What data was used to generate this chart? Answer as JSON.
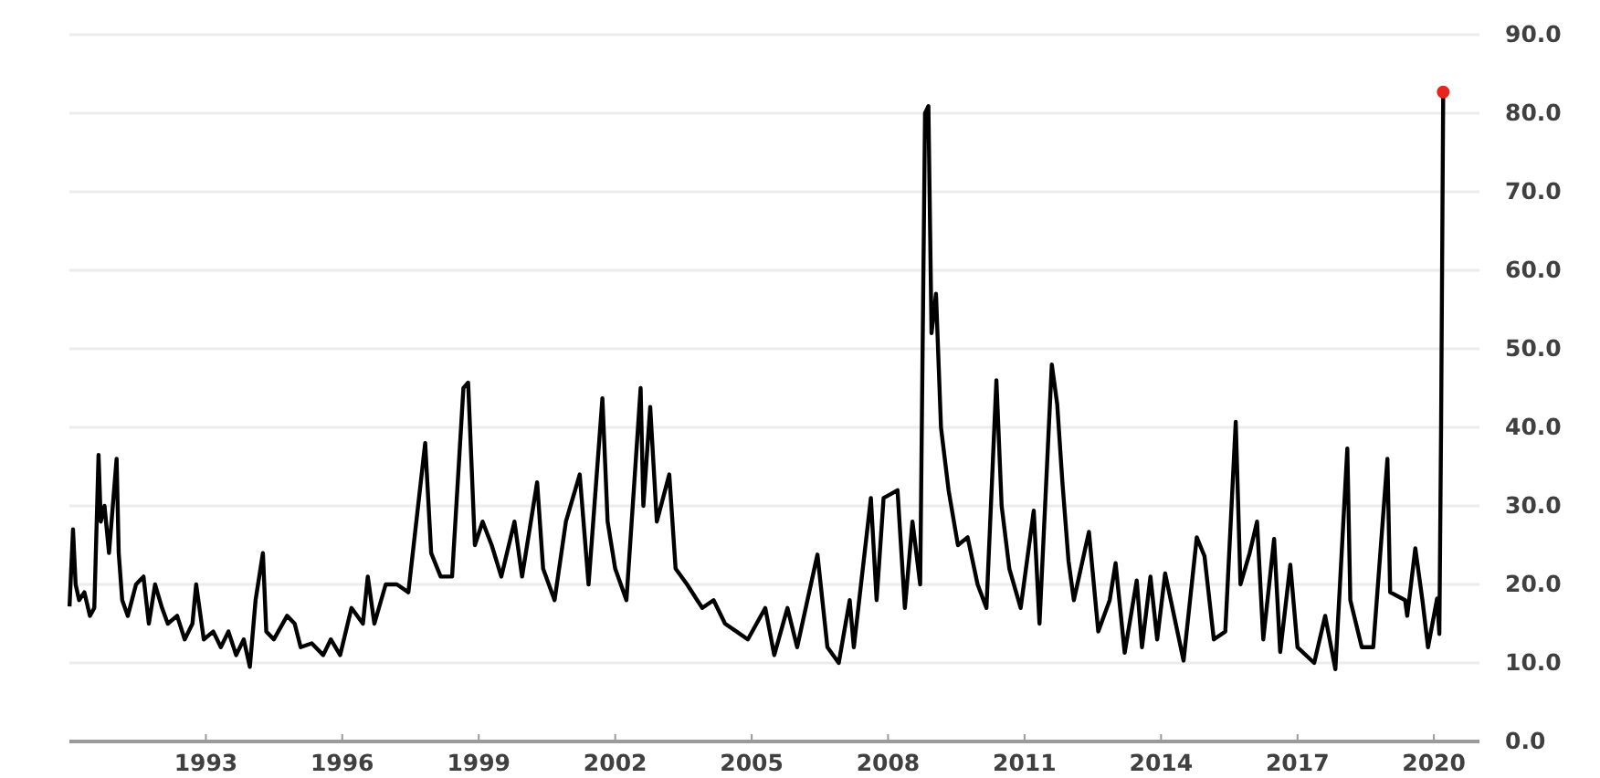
{
  "chart_data": {
    "type": "line",
    "xlim": [
      "1990-01-01",
      "2021-01-01"
    ],
    "xticks": [
      "1993",
      "1996",
      "1999",
      "2002",
      "2005",
      "2008",
      "2011",
      "2014",
      "2017",
      "2020"
    ],
    "ylim": [
      0,
      90
    ],
    "yticks": [
      {
        "value": 0,
        "label": "0.0"
      },
      {
        "value": 10,
        "label": "10.0"
      },
      {
        "value": 20,
        "label": "20.0"
      },
      {
        "value": 30,
        "label": "30.0"
      },
      {
        "value": 40,
        "label": "40.0"
      },
      {
        "value": 50,
        "label": "50.0"
      },
      {
        "value": 60,
        "label": "60.0"
      },
      {
        "value": 70,
        "label": "70.0"
      },
      {
        "value": 80,
        "label": "80.0"
      },
      {
        "value": 90,
        "label": "90.0"
      }
    ],
    "grid": "y",
    "line_style": "solid",
    "series": [
      {
        "color": "#000000",
        "x": [
          "1990-01-02",
          "1990-01-30",
          "1990-02-20",
          "1990-03-20",
          "1990-05-01",
          "1990-06-15",
          "1990-07-20",
          "1990-08-23",
          "1990-09-10",
          "1990-10-10",
          "1990-11-15",
          "1991-01-15",
          "1991-02-01",
          "1991-03-01",
          "1991-04-15",
          "1991-06-20",
          "1991-08-19",
          "1991-10-01",
          "1991-11-20",
          "1992-01-15",
          "1992-03-01",
          "1992-05-15",
          "1992-07-15",
          "1992-09-15",
          "1992-10-15",
          "1992-12-15",
          "1993-03-01",
          "1993-05-01",
          "1993-07-01",
          "1993-09-01",
          "1993-11-01",
          "1993-12-20",
          "1994-02-04",
          "1994-04-04",
          "1994-05-01",
          "1994-07-01",
          "1994-10-15",
          "1994-12-15",
          "1995-02-01",
          "1995-05-01",
          "1995-08-01",
          "1995-10-01",
          "1995-12-15",
          "1996-03-15",
          "1996-06-15",
          "1996-07-24",
          "1996-09-15",
          "1996-12-15",
          "1997-03-15",
          "1997-06-15",
          "1997-10-28",
          "1997-12-15",
          "1998-03-01",
          "1998-06-01",
          "1998-08-31",
          "1998-10-08",
          "1998-12-01",
          "1999-02-01",
          "1999-04-15",
          "1999-07-01",
          "1999-10-15",
          "1999-12-15",
          "2000-04-14",
          "2000-06-01",
          "2000-09-01",
          "2000-12-01",
          "2001-03-22",
          "2001-06-01",
          "2001-09-20",
          "2001-11-01",
          "2002-01-01",
          "2002-04-01",
          "2002-07-24",
          "2002-08-15",
          "2002-10-09",
          "2002-12-01",
          "2003-03-11",
          "2003-05-01",
          "2003-08-01",
          "2003-12-01",
          "2004-03-01",
          "2004-06-01",
          "2004-09-01",
          "2004-12-01",
          "2005-04-20",
          "2005-07-01",
          "2005-10-15",
          "2006-01-01",
          "2006-06-13",
          "2006-09-01",
          "2006-12-01",
          "2007-02-27",
          "2007-04-01",
          "2007-08-16",
          "2007-10-01",
          "2007-11-26",
          "2008-01-22",
          "2008-03-17",
          "2008-05-15",
          "2008-07-15",
          "2008-09-15",
          "2008-10-24",
          "2008-11-20",
          "2008-12-15",
          "2009-01-20",
          "2009-03-01",
          "2009-05-01",
          "2009-07-15",
          "2009-10-01",
          "2009-12-20",
          "2010-03-01",
          "2010-05-20",
          "2010-07-01",
          "2010-09-01",
          "2010-12-01",
          "2011-03-16",
          "2011-05-01",
          "2011-08-08",
          "2011-09-20",
          "2011-11-01",
          "2011-12-20",
          "2012-02-01",
          "2012-06-01",
          "2012-08-15",
          "2012-11-15",
          "2013-01-01",
          "2013-03-15",
          "2013-06-20",
          "2013-08-01",
          "2013-10-08",
          "2013-12-01",
          "2014-02-03",
          "2014-07-01",
          "2014-10-15",
          "2014-12-16",
          "2015-03-01",
          "2015-06-01",
          "2015-08-24",
          "2015-10-01",
          "2015-12-14",
          "2016-02-11",
          "2016-04-01",
          "2016-06-27",
          "2016-08-15",
          "2016-11-04",
          "2017-01-01",
          "2017-05-15",
          "2017-08-11",
          "2017-11-01",
          "2018-02-05",
          "2018-03-01",
          "2018-06-01",
          "2018-09-01",
          "2018-12-24",
          "2019-01-15",
          "2019-05-15",
          "2019-06-01",
          "2019-08-05",
          "2019-10-01",
          "2019-11-15",
          "2020-01-27",
          "2020-02-14",
          "2020-02-28",
          "2020-03-16"
        ],
        "values": [
          17.2,
          27,
          20,
          18,
          19,
          16,
          17,
          36.5,
          28,
          30,
          24,
          36,
          24,
          18,
          16,
          20,
          21,
          15,
          20,
          17,
          15,
          16,
          13,
          15,
          20,
          13,
          14,
          12,
          14,
          11,
          13,
          9.5,
          18,
          24,
          14,
          13,
          16,
          15,
          12,
          12.5,
          11,
          13,
          11,
          17,
          15,
          21,
          15,
          20,
          20,
          19,
          38,
          24,
          21,
          21,
          45,
          45.7,
          25,
          28,
          25,
          21,
          28,
          21,
          33,
          22,
          18,
          28,
          34,
          20,
          43.7,
          28,
          22,
          18,
          45,
          30,
          42.6,
          28,
          34,
          22,
          20,
          17,
          18,
          15,
          14,
          13,
          17,
          11,
          17,
          12,
          23.8,
          12,
          10,
          18,
          12,
          31,
          18,
          31,
          31.5,
          32,
          17,
          28,
          20,
          80,
          80.9,
          52,
          57,
          40,
          32,
          25,
          26,
          20,
          17,
          46,
          30,
          22,
          17,
          29.4,
          15,
          48,
          43,
          33,
          23,
          18,
          26.7,
          14,
          18,
          22.7,
          11.3,
          20.5,
          12,
          21,
          13,
          21.4,
          10.3,
          26,
          23.6,
          13,
          14,
          40.7,
          20,
          24,
          28,
          13,
          25.8,
          11.4,
          22.5,
          12,
          10,
          16,
          9.2,
          37.3,
          18,
          12,
          12,
          36,
          19,
          18,
          16,
          24.6,
          18,
          12,
          18.2,
          13.7,
          40,
          82.7
        ]
      },
      {
        "type": "scatter",
        "color": "#e8241c",
        "marker": "circle",
        "x": [
          "2020-03-16"
        ],
        "values": [
          82.7
        ]
      }
    ]
  }
}
